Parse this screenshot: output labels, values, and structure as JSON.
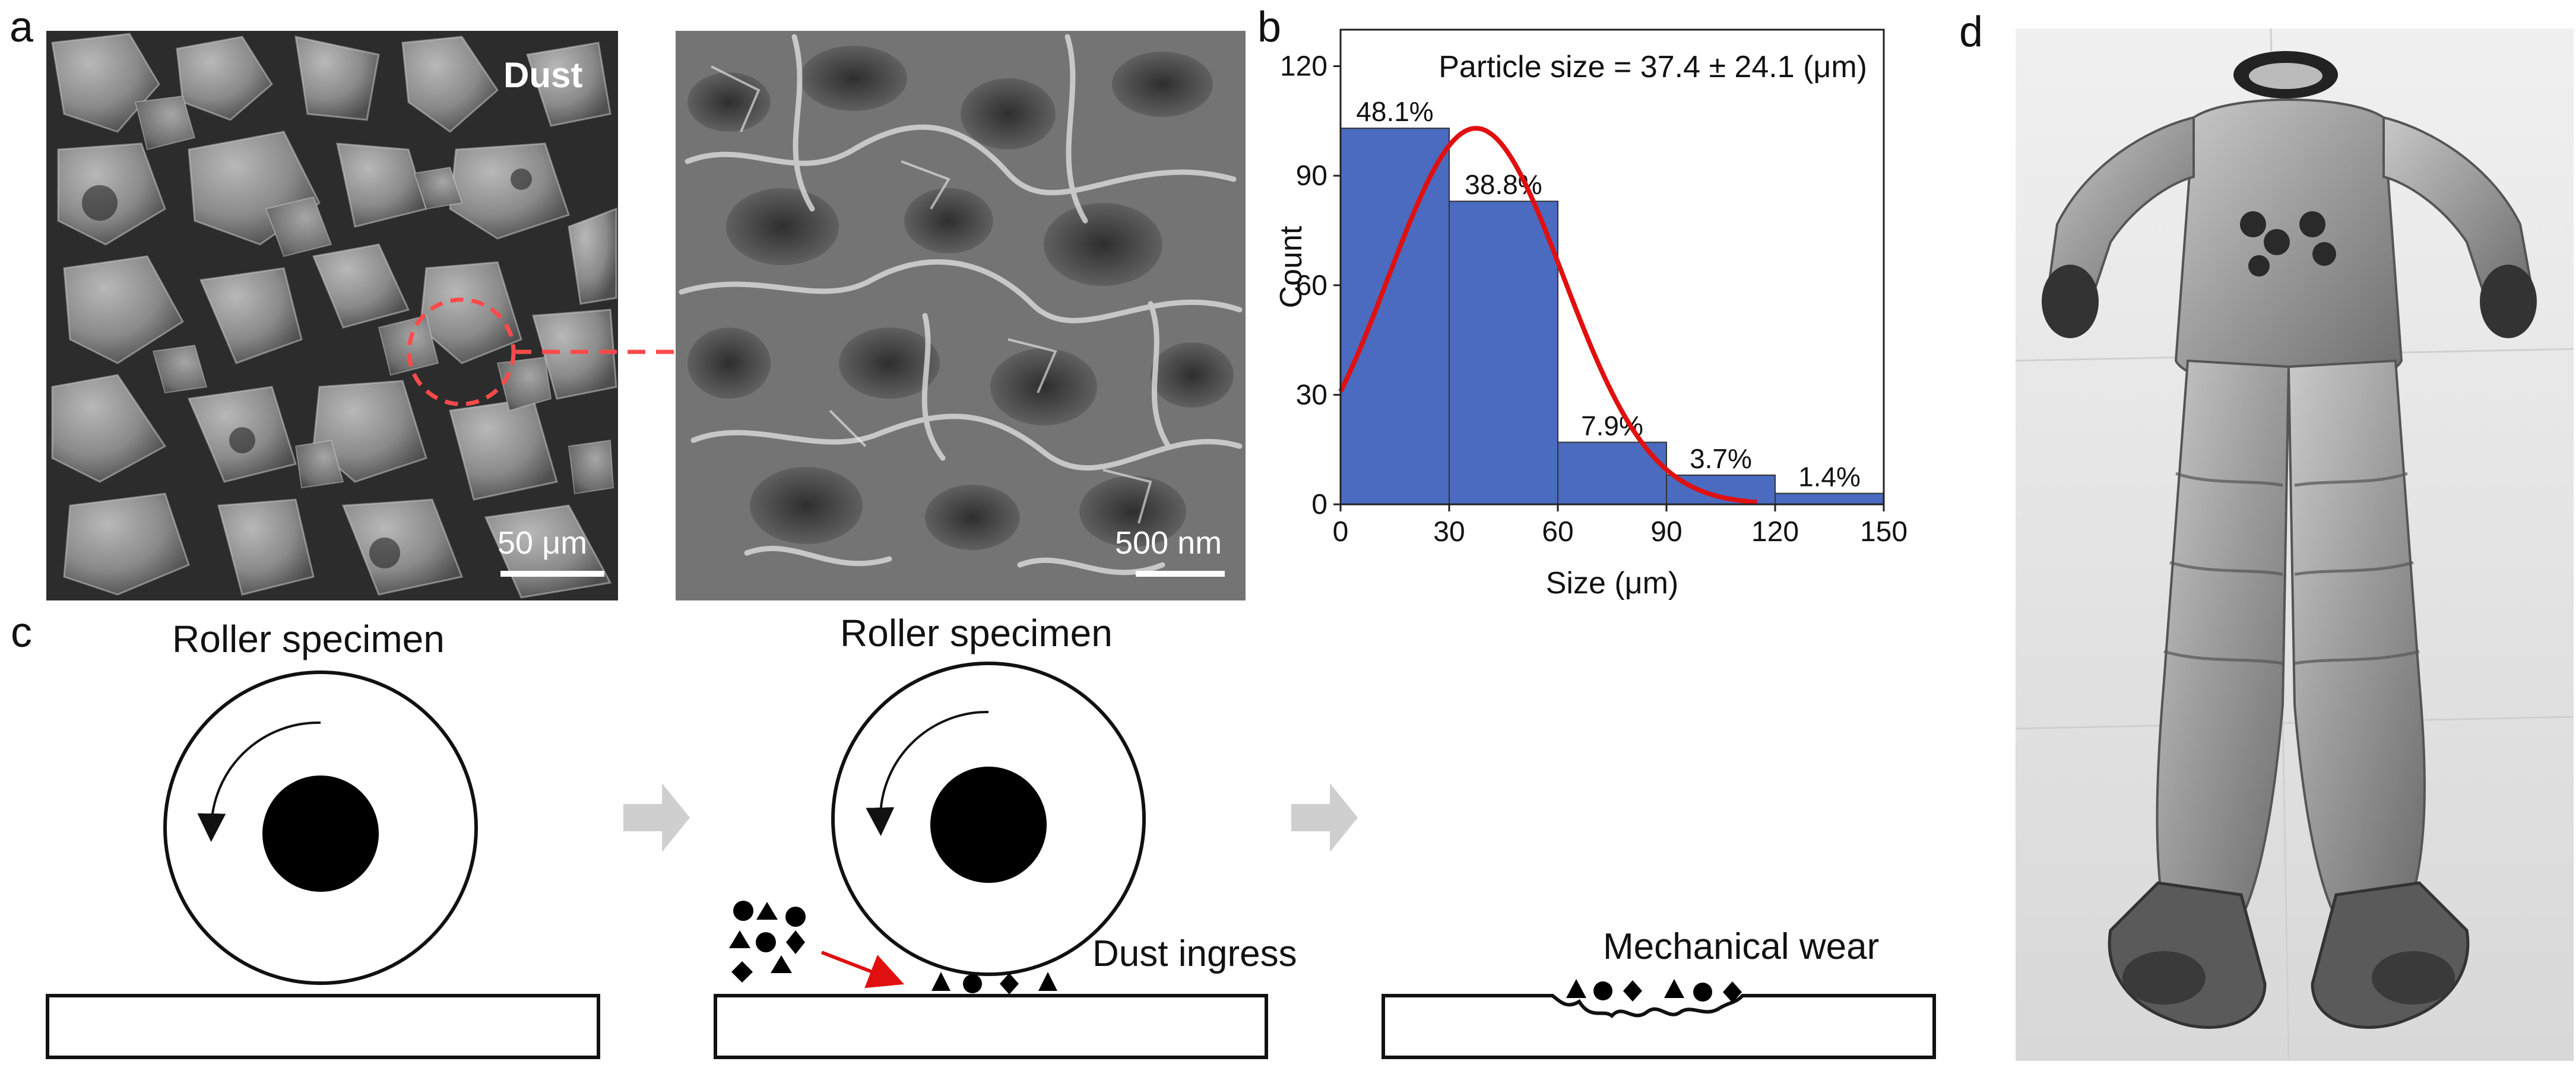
{
  "panels": {
    "a": {
      "letter": "a",
      "left_image": {
        "label": "Dust",
        "scale": "50 μm"
      },
      "right_image": {
        "scale": "500 nm"
      }
    },
    "b": {
      "letter": "b"
    },
    "c": {
      "letter": "c",
      "stage1": {
        "title": "Roller specimen"
      },
      "stage2": {
        "title": "Roller specimen",
        "note": "Dust ingress"
      },
      "stage3": {
        "note": "Mechanical wear"
      }
    },
    "d": {
      "letter": "d"
    }
  },
  "chart_data": {
    "type": "bar",
    "title": "Particle size = 37.4 ± 24.1 (μm)",
    "xlabel": "Size (μm)",
    "ylabel": "Count",
    "bins": [
      [
        0,
        30
      ],
      [
        30,
        60
      ],
      [
        60,
        90
      ],
      [
        90,
        120
      ],
      [
        120,
        150
      ]
    ],
    "values": [
      103,
      83,
      17,
      8,
      3
    ],
    "bar_labels": [
      "48.1%",
      "38.8%",
      "7.9%",
      "3.7%",
      "1.4%"
    ],
    "xlim": [
      0,
      150
    ],
    "ylim": [
      0,
      130
    ],
    "xticks": [
      "0",
      "30",
      "60",
      "90",
      "120",
      "150"
    ],
    "yticks": [
      "0",
      "30",
      "60",
      "90",
      "120"
    ],
    "bar_color": "#4a6bbf",
    "fit": {
      "type": "normal",
      "mean": 37.4,
      "std": 24.1,
      "peak": 103,
      "color": "#e01010"
    }
  }
}
